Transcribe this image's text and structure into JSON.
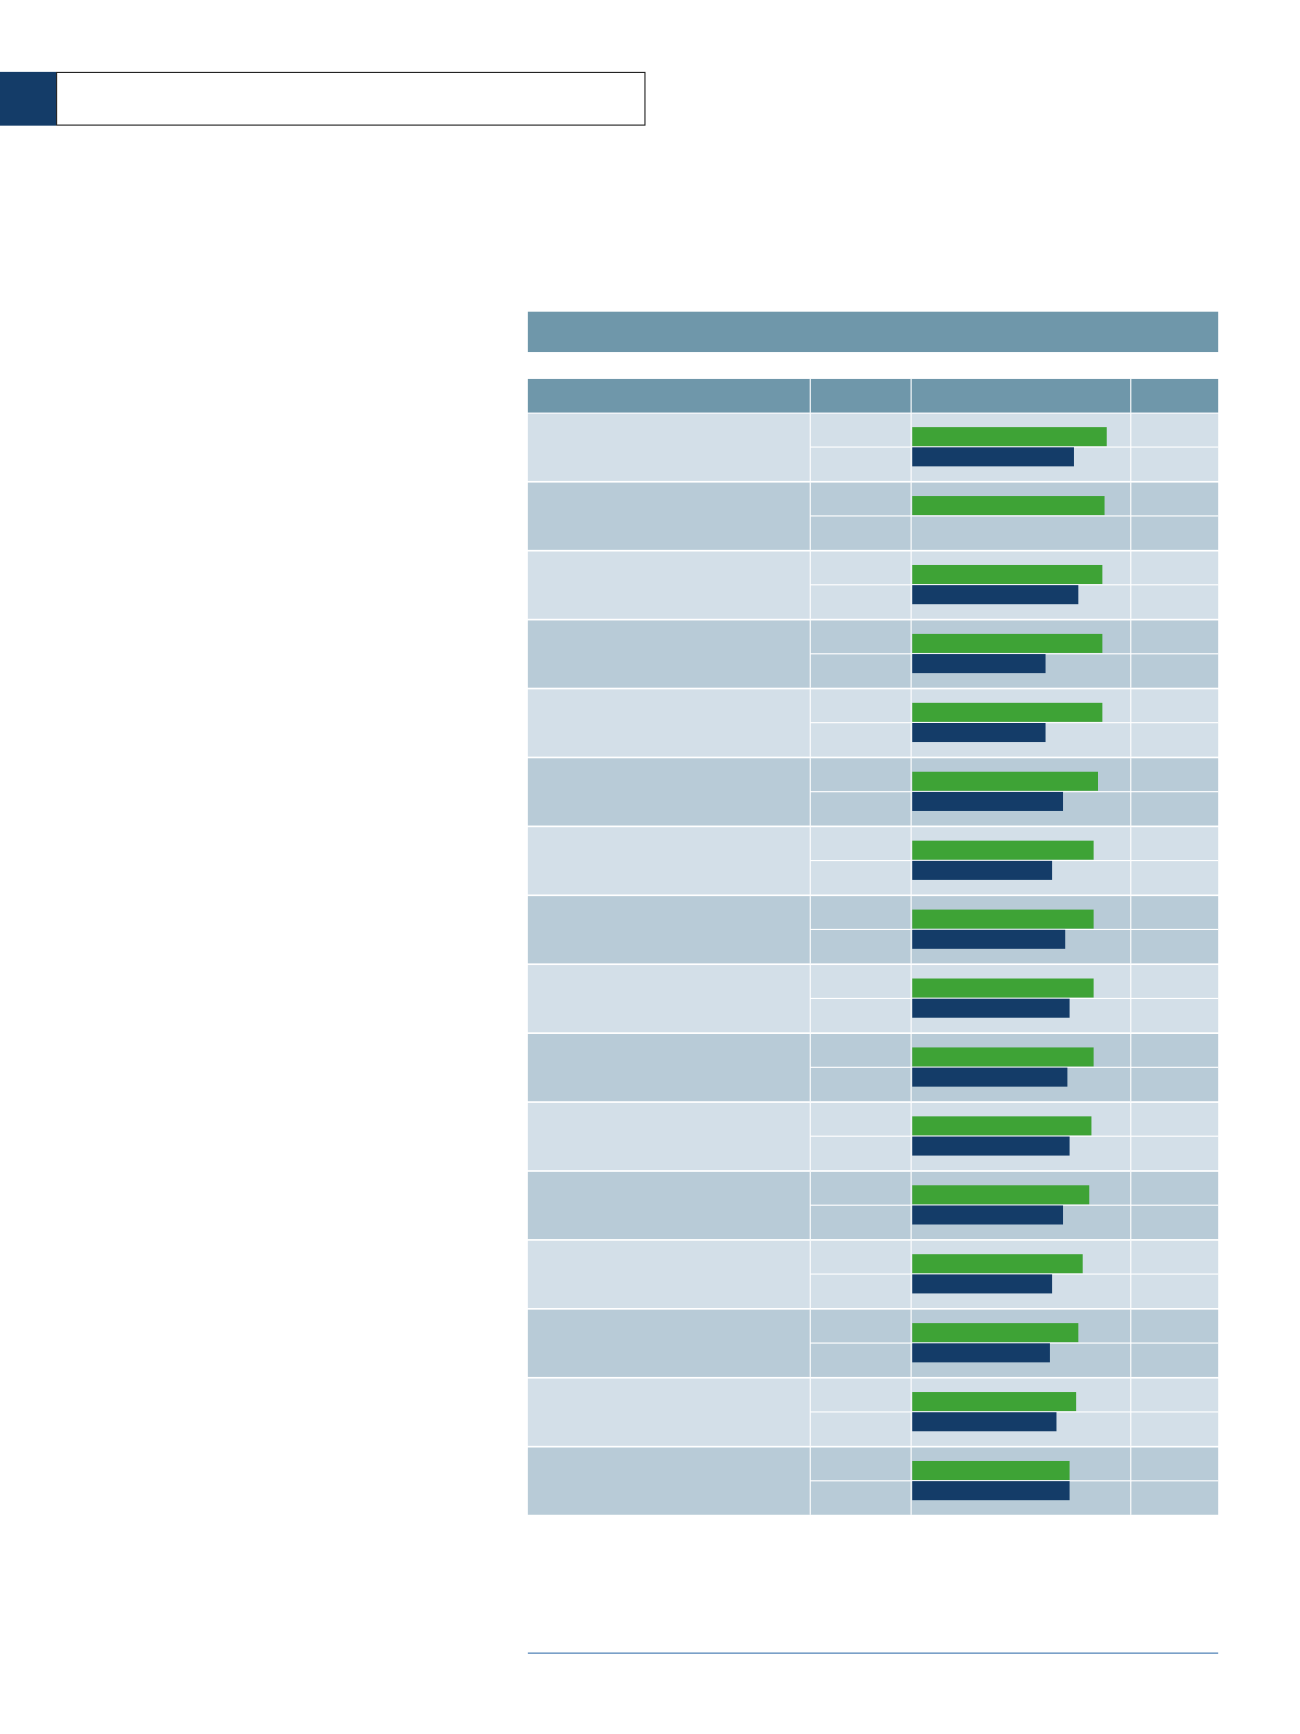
{
  "chart_data": {
    "type": "bar",
    "series": [
      {
        "color": "#3ea336",
        "values": [
          89,
          88,
          87,
          87,
          87,
          85,
          83,
          83,
          83,
          83,
          82,
          81,
          78,
          76,
          75,
          72
        ]
      },
      {
        "color": "#143c68",
        "values": [
          74,
          null,
          76,
          61,
          61,
          69,
          64,
          70,
          72,
          71,
          72,
          69,
          64,
          63,
          66,
          72
        ]
      }
    ]
  }
}
